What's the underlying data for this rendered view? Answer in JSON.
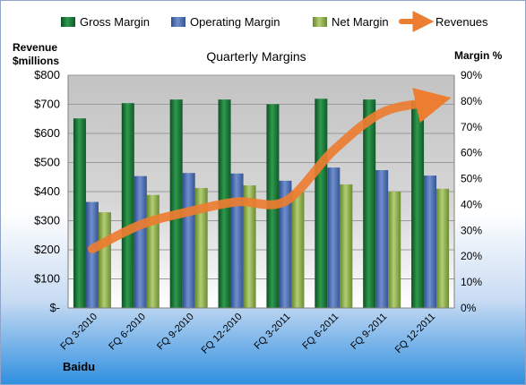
{
  "chart_data": {
    "type": "bar",
    "title": "Quarterly Margins",
    "categories": [
      "FQ 3-2010",
      "FQ 6-2010",
      "FQ 9-2010",
      "FQ 12-2010",
      "FQ 3-2011",
      "FQ 6-2011",
      "FQ 9-2011",
      "FQ 12-2011"
    ],
    "series": [
      {
        "name": "Gross Margin",
        "axis": "right",
        "color": "#1f7a3a",
        "values": [
          73.3,
          79.2,
          80.6,
          80.6,
          78.8,
          80.9,
          80.6,
          80.0
        ]
      },
      {
        "name": "Operating Margin",
        "axis": "right",
        "color": "#4a6fb4",
        "values": [
          41.0,
          51.0,
          52.2,
          52.0,
          49.2,
          54.3,
          53.3,
          51.2
        ]
      },
      {
        "name": "Net Margin",
        "axis": "right",
        "color": "#8eb050",
        "values": [
          37.0,
          43.7,
          46.4,
          47.4,
          44.8,
          47.8,
          45.0,
          46.1
        ]
      }
    ],
    "line_series": {
      "name": "Revenues",
      "axis": "left",
      "color": "#ed7d31",
      "values": [
        203,
        286,
        331,
        365,
        367,
        542,
        671,
        707
      ]
    },
    "left_axis": {
      "label_line1": "Revenue",
      "label_line2": "$millions",
      "min": 0,
      "max": 800,
      "step": 100,
      "ticks": [
        "$-",
        "$100",
        "$200",
        "$300",
        "$400",
        "$500",
        "$600",
        "$700",
        "$800"
      ]
    },
    "right_axis": {
      "label": "Margin %",
      "min": 0,
      "max": 90,
      "step": 10,
      "ticks": [
        "0%",
        "10%",
        "20%",
        "30%",
        "40%",
        "50%",
        "60%",
        "70%",
        "80%",
        "90%"
      ]
    },
    "grid": true,
    "legend_position": "top",
    "footer_label": "Baidu"
  }
}
